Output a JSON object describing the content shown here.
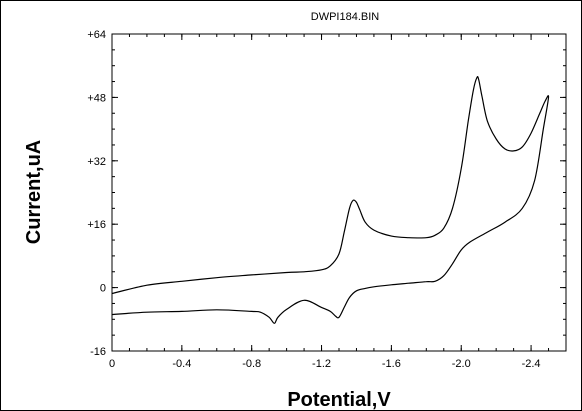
{
  "chart_data": {
    "type": "line",
    "title": "DWPI184.BIN",
    "xlabel": "Potential,V",
    "ylabel": "Current,uA",
    "x_reversed": true,
    "xlim": [
      0,
      -2.6
    ],
    "ylim": [
      -16,
      64
    ],
    "x_ticks": [
      0,
      -0.4,
      -0.8,
      -1.2,
      -1.6,
      -2.0,
      -2.4
    ],
    "x_tick_labels": [
      "0",
      "-0.4",
      "-0.8",
      "-1.2",
      "-1.6",
      "-2.0",
      "-2.4"
    ],
    "y_ticks": [
      -16,
      0,
      16,
      32,
      48,
      64
    ],
    "y_tick_labels": [
      "-16",
      "0",
      "+16",
      "+32",
      "+48",
      "+64"
    ],
    "grid": false,
    "line_color": "#000000",
    "series": [
      {
        "x": [
          0,
          -0.2,
          -0.4,
          -0.6,
          -0.8,
          -1.0,
          -1.1,
          -1.2,
          -1.25,
          -1.3,
          -1.33,
          -1.36,
          -1.38,
          -1.4,
          -1.42,
          -1.45,
          -1.5,
          -1.6,
          -1.7,
          -1.8,
          -1.85,
          -1.9,
          -1.95,
          -2.0,
          -2.04,
          -2.07,
          -2.09,
          -2.1,
          -2.12,
          -2.15,
          -2.2,
          -2.25,
          -2.3,
          -2.35,
          -2.4,
          -2.45,
          -2.48,
          -2.5,
          -2.47,
          -2.42,
          -2.35,
          -2.25,
          -2.15,
          -2.05,
          -2.0,
          -1.95,
          -1.9,
          -1.85,
          -1.8,
          -1.7,
          -1.6,
          -1.5,
          -1.45,
          -1.4,
          -1.36,
          -1.33,
          -1.3,
          -1.28,
          -1.25,
          -1.2,
          -1.1,
          -1.0,
          -0.95,
          -0.93,
          -0.9,
          -0.85,
          -0.8,
          -0.6,
          -0.4,
          -0.2,
          0
        ],
        "y": [
          -1.5,
          0.6,
          1.6,
          2.5,
          3.2,
          3.8,
          4.0,
          4.5,
          5.5,
          8.5,
          14,
          20,
          22,
          21.5,
          19.5,
          16.5,
          14.5,
          13,
          12.6,
          12.6,
          13.2,
          15,
          20,
          30,
          42,
          50,
          53,
          52.5,
          48,
          42,
          37.5,
          35,
          34.5,
          35.5,
          39,
          44,
          47,
          48,
          40,
          27,
          20,
          16.5,
          14,
          11.5,
          9.5,
          6,
          3,
          1.6,
          1.5,
          1.1,
          0.7,
          0.2,
          -0.2,
          -0.8,
          -2.5,
          -5,
          -7.5,
          -7.2,
          -6,
          -5,
          -3.2,
          -5.5,
          -7.5,
          -9,
          -7.5,
          -6.2,
          -6,
          -5.6,
          -6,
          -6.2,
          -6.8
        ]
      }
    ]
  }
}
